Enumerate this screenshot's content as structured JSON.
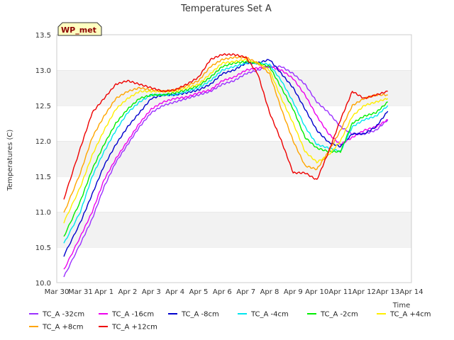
{
  "chart_data": {
    "type": "line",
    "title": "Temperatures Set A",
    "xlabel": "Time",
    "ylabel": "Temperatures (C)",
    "badge": "WP_met",
    "x_ticks": [
      "Mar 30",
      "Mar 31",
      "Apr 1",
      "Apr 2",
      "Apr 3",
      "Apr 4",
      "Apr 5",
      "Apr 6",
      "Apr 7",
      "Apr 8",
      "Apr 9",
      "Apr 10",
      "Apr 11",
      "Apr 12",
      "Apr 13",
      "Apr 14"
    ],
    "xlim": [
      0,
      15
    ],
    "ylim": [
      10.0,
      13.5
    ],
    "y_ticks": [
      "10.0",
      "10.5",
      "11.0",
      "11.5",
      "12.0",
      "12.5",
      "13.0",
      "13.5"
    ],
    "grid": "horizontal bands",
    "legend_position": "bottom",
    "series": [
      {
        "name": "TC_A -32cm",
        "color": "#9b30ff",
        "x": [
          0.3,
          1,
          1.5,
          2,
          2.5,
          3,
          3.5,
          4,
          4.5,
          5,
          5.5,
          6,
          6.5,
          7,
          7.5,
          8,
          8.5,
          9,
          9.5,
          10,
          10.5,
          11,
          11.5,
          12,
          12.5,
          13,
          13.5,
          14
        ],
        "y": [
          10.08,
          10.55,
          10.9,
          11.35,
          11.7,
          11.95,
          12.2,
          12.4,
          12.5,
          12.55,
          12.6,
          12.65,
          12.7,
          12.8,
          12.85,
          12.95,
          13.0,
          13.05,
          13.05,
          12.95,
          12.8,
          12.55,
          12.4,
          12.2,
          12.1,
          12.1,
          12.15,
          12.3
        ]
      },
      {
        "name": "TC_A -16cm",
        "color": "#ee00ee",
        "x": [
          0.3,
          1,
          1.5,
          2,
          2.5,
          3,
          3.5,
          4,
          4.5,
          5,
          5.5,
          6,
          6.5,
          7,
          7.5,
          8,
          8.5,
          9,
          9.5,
          10,
          10.5,
          11,
          11.5,
          12,
          12.5,
          13,
          13.5,
          14
        ],
        "y": [
          10.18,
          10.65,
          11.0,
          11.45,
          11.75,
          12.0,
          12.25,
          12.45,
          12.55,
          12.6,
          12.62,
          12.68,
          12.72,
          12.85,
          12.9,
          13.0,
          13.03,
          13.05,
          13.0,
          12.88,
          12.65,
          12.35,
          12.1,
          11.95,
          12.05,
          12.15,
          12.2,
          12.3
        ]
      },
      {
        "name": "TC_A -8cm",
        "color": "#0000cd",
        "x": [
          0.3,
          1,
          1.5,
          2,
          2.5,
          3,
          3.5,
          4,
          4.5,
          5,
          5.5,
          6,
          6.5,
          7,
          7.5,
          8,
          8.5,
          9,
          9.5,
          10,
          10.5,
          11,
          11.5,
          12,
          12.5,
          13,
          13.5,
          14
        ],
        "y": [
          10.38,
          10.85,
          11.25,
          11.65,
          11.95,
          12.2,
          12.4,
          12.6,
          12.65,
          12.65,
          12.68,
          12.72,
          12.8,
          12.95,
          13.0,
          13.1,
          13.1,
          13.15,
          12.95,
          12.75,
          12.45,
          12.15,
          11.98,
          11.92,
          12.1,
          12.1,
          12.2,
          12.42
        ]
      },
      {
        "name": "TC_A -4cm",
        "color": "#00e5ee",
        "x": [
          0.3,
          1,
          1.5,
          2,
          2.5,
          3,
          3.5,
          4,
          4.5,
          5,
          5.5,
          6,
          6.5,
          7,
          7.5,
          8,
          8.5,
          9,
          9.5,
          10,
          10.5,
          11,
          11.5,
          12,
          12.5,
          13,
          13.5,
          14
        ],
        "y": [
          10.55,
          11.0,
          11.5,
          11.85,
          12.15,
          12.4,
          12.55,
          12.65,
          12.65,
          12.65,
          12.7,
          12.75,
          12.85,
          13.0,
          13.05,
          13.1,
          13.1,
          13.08,
          12.85,
          12.55,
          12.2,
          11.95,
          11.9,
          11.85,
          12.2,
          12.3,
          12.35,
          12.5
        ]
      },
      {
        "name": "TC_A -2cm",
        "color": "#00ee00",
        "x": [
          0.3,
          1,
          1.5,
          2,
          2.5,
          3,
          3.5,
          4,
          4.5,
          5,
          5.5,
          6,
          6.5,
          7,
          7.5,
          8,
          8.5,
          9,
          9.5,
          10,
          10.5,
          11,
          11.5,
          12,
          12.5,
          13,
          13.5,
          14
        ],
        "y": [
          10.65,
          11.15,
          11.6,
          11.95,
          12.25,
          12.45,
          12.6,
          12.65,
          12.65,
          12.68,
          12.72,
          12.78,
          12.9,
          13.05,
          13.1,
          13.12,
          13.1,
          13.05,
          12.75,
          12.45,
          12.05,
          11.9,
          11.85,
          11.85,
          12.25,
          12.35,
          12.4,
          12.55
        ]
      },
      {
        "name": "TC_A +4cm",
        "color": "#ffee00",
        "x": [
          0.3,
          1,
          1.5,
          2,
          2.5,
          3,
          3.5,
          4,
          4.5,
          5,
          5.5,
          6,
          6.5,
          7,
          7.5,
          8,
          8.5,
          9,
          9.5,
          10,
          10.5,
          11,
          11.5,
          12,
          12.5,
          13,
          13.5,
          14
        ],
        "y": [
          10.85,
          11.35,
          11.8,
          12.15,
          12.45,
          12.6,
          12.7,
          12.7,
          12.7,
          12.7,
          12.75,
          12.8,
          12.95,
          13.1,
          13.12,
          13.15,
          13.1,
          13.0,
          12.6,
          12.25,
          11.85,
          11.7,
          11.8,
          12.0,
          12.35,
          12.5,
          12.55,
          12.6
        ]
      },
      {
        "name": "TC_A +8cm",
        "color": "#ffa500",
        "x": [
          0.3,
          1,
          1.5,
          2,
          2.5,
          3,
          3.5,
          4,
          4.5,
          5,
          5.5,
          6,
          6.5,
          7,
          7.5,
          8,
          8.5,
          9,
          9.5,
          10,
          10.5,
          11,
          11.5,
          12,
          12.5,
          13,
          13.5,
          14
        ],
        "y": [
          10.98,
          11.55,
          12.05,
          12.35,
          12.6,
          12.7,
          12.75,
          12.72,
          12.7,
          12.72,
          12.78,
          12.85,
          13.05,
          13.15,
          13.18,
          13.18,
          13.1,
          12.95,
          12.45,
          12.0,
          11.65,
          11.6,
          11.85,
          12.15,
          12.5,
          12.6,
          12.65,
          12.65
        ]
      },
      {
        "name": "TC_A +12cm",
        "color": "#ee0000",
        "x": [
          0.3,
          1,
          1.5,
          2,
          2.5,
          3,
          3.5,
          4,
          4.5,
          5,
          5.5,
          6,
          6.5,
          7,
          7.5,
          8,
          8.5,
          9,
          9.5,
          10,
          10.5,
          11,
          11.5,
          12,
          12.5,
          13,
          13.5,
          14
        ],
        "y": [
          11.18,
          11.9,
          12.4,
          12.6,
          12.8,
          12.85,
          12.8,
          12.75,
          12.7,
          12.72,
          12.8,
          12.9,
          13.15,
          13.22,
          13.22,
          13.18,
          12.95,
          12.4,
          12.0,
          11.55,
          11.55,
          11.45,
          11.85,
          12.3,
          12.7,
          12.6,
          12.65,
          12.7
        ]
      }
    ]
  }
}
